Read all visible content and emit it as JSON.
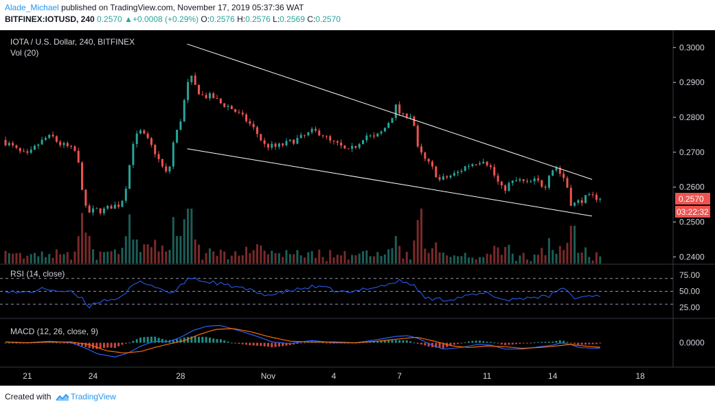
{
  "header": {
    "author": "Alade_Michael",
    "published": "published on TradingView.com, November 17, 2019 05:37:36 WAT",
    "symbol": "BITFINEX:IOTUSD, 240",
    "o_label": "O:",
    "o_value": "0.2576",
    "h_label": "H:",
    "h_value": "0.2576",
    "l_label": "L:",
    "l_value": "0.2569",
    "c_label": "C:",
    "c_value": "0.2570",
    "price": "0.2570",
    "change": "+0.0008 (+0.29%)"
  },
  "main_pane": {
    "title": "IOTA / U.S. Dollar, 240, BITFINEX",
    "volume_label": "Vol (20)",
    "price_tag": "0.2570",
    "countdown": "03:22:32"
  },
  "rsi_pane": {
    "label": "RSI (14, close)"
  },
  "macd_pane": {
    "label": "MACD (12, 26, close, 9)"
  },
  "footer": {
    "created_with": "Created with",
    "brand": "TradingView"
  },
  "colors": {
    "up": "#26a69a",
    "down": "#ef5350",
    "background": "#000000",
    "rsi_line": "#2962ff",
    "macd_line": "#2962ff",
    "signal_line": "#ff6d00",
    "trendline": "#ffffff"
  },
  "chart_data": [
    {
      "type": "candlestick",
      "pair": "IOTA / U.S. Dollar",
      "interval": "240",
      "exchange": "BITFINEX",
      "y_ticks": [
        0.3,
        0.29,
        0.28,
        0.27,
        0.26,
        0.25,
        0.24
      ],
      "y_tick_labels": [
        "0.3000",
        "0.2900",
        "0.2800",
        "0.2700",
        "0.2600",
        "0.2500",
        "0.2400"
      ],
      "ylim": [
        0.2385,
        0.303
      ],
      "x_tick_labels": [
        "21",
        "24",
        "28",
        "Nov",
        "4",
        "7",
        "11",
        "14",
        "18"
      ],
      "x_range_days": "Oct 21 – Nov 17, 2019",
      "last_close": 0.257,
      "trendlines": [
        {
          "name": "upper",
          "from": {
            "day": 28.3,
            "price": 0.301
          },
          "to": {
            "day": 46.8,
            "price": 0.2622
          }
        },
        {
          "name": "lower",
          "from": {
            "day": 28.3,
            "price": 0.271
          },
          "to": {
            "day": 46.8,
            "price": 0.2517
          }
        }
      ],
      "price_path": [
        [
          20.0,
          0.2735
        ],
        [
          20.4,
          0.272
        ],
        [
          20.8,
          0.27
        ],
        [
          21.2,
          0.269
        ],
        [
          21.6,
          0.272
        ],
        [
          22.0,
          0.274
        ],
        [
          22.3,
          0.2745
        ],
        [
          22.6,
          0.2725
        ],
        [
          23.0,
          0.2715
        ],
        [
          23.4,
          0.27
        ],
        [
          23.6,
          0.263
        ],
        [
          23.8,
          0.254
        ],
        [
          24.0,
          0.2528
        ],
        [
          24.3,
          0.2535
        ],
        [
          24.6,
          0.2532
        ],
        [
          25.0,
          0.2545
        ],
        [
          25.4,
          0.255
        ],
        [
          25.6,
          0.258
        ],
        [
          25.8,
          0.265
        ],
        [
          26.0,
          0.273
        ],
        [
          26.3,
          0.276
        ],
        [
          26.6,
          0.274
        ],
        [
          27.0,
          0.27
        ],
        [
          27.3,
          0.266
        ],
        [
          27.6,
          0.263
        ],
        [
          27.8,
          0.272
        ],
        [
          28.0,
          0.276
        ],
        [
          28.2,
          0.28
        ],
        [
          28.4,
          0.287
        ],
        [
          28.6,
          0.292
        ],
        [
          28.9,
          0.288
        ],
        [
          29.2,
          0.286
        ],
        [
          29.6,
          0.286
        ],
        [
          30.0,
          0.284
        ],
        [
          30.4,
          0.283
        ],
        [
          30.8,
          0.281
        ],
        [
          31.2,
          0.279
        ],
        [
          31.6,
          0.276
        ],
        [
          32.0,
          0.272
        ],
        [
          32.5,
          0.2715
        ],
        [
          33.0,
          0.2725
        ],
        [
          33.4,
          0.2735
        ],
        [
          33.8,
          0.2745
        ],
        [
          34.2,
          0.276
        ],
        [
          34.6,
          0.2755
        ],
        [
          35.0,
          0.273
        ],
        [
          35.4,
          0.272
        ],
        [
          35.8,
          0.27
        ],
        [
          36.2,
          0.272
        ],
        [
          36.6,
          0.275
        ],
        [
          37.0,
          0.274
        ],
        [
          37.4,
          0.276
        ],
        [
          37.8,
          0.28
        ],
        [
          38.0,
          0.283
        ],
        [
          38.3,
          0.28
        ],
        [
          38.6,
          0.2815
        ],
        [
          38.8,
          0.279
        ],
        [
          39.0,
          0.271
        ],
        [
          39.3,
          0.268
        ],
        [
          39.6,
          0.266
        ],
        [
          40.0,
          0.262
        ],
        [
          40.4,
          0.263
        ],
        [
          40.8,
          0.264
        ],
        [
          41.2,
          0.266
        ],
        [
          41.6,
          0.267
        ],
        [
          42.0,
          0.268
        ],
        [
          42.3,
          0.266
        ],
        [
          42.6,
          0.262
        ],
        [
          42.9,
          0.259
        ],
        [
          43.2,
          0.261
        ],
        [
          43.6,
          0.262
        ],
        [
          44.0,
          0.261
        ],
        [
          44.4,
          0.262
        ],
        [
          44.8,
          0.26
        ],
        [
          45.0,
          0.264
        ],
        [
          45.3,
          0.266
        ],
        [
          45.6,
          0.263
        ],
        [
          45.8,
          0.262
        ],
        [
          45.9,
          0.256
        ],
        [
          46.1,
          0.255
        ],
        [
          46.4,
          0.256
        ],
        [
          46.7,
          0.257
        ],
        [
          47.0,
          0.2572
        ],
        [
          47.3,
          0.257
        ]
      ]
    },
    {
      "type": "line",
      "name": "RSI (14, close)",
      "y_ticks": [
        75.0,
        50.0,
        25.0
      ],
      "y_tick_labels": [
        "75.00",
        "50.00",
        "25.00"
      ],
      "ylim": [
        10,
        90
      ],
      "levels": [
        70,
        50,
        30
      ],
      "values": [
        [
          20.0,
          52
        ],
        [
          20.6,
          47
        ],
        [
          21.2,
          50
        ],
        [
          21.8,
          54
        ],
        [
          22.4,
          51
        ],
        [
          23.0,
          48
        ],
        [
          23.5,
          38
        ],
        [
          23.8,
          26
        ],
        [
          24.2,
          34
        ],
        [
          24.8,
          38
        ],
        [
          25.4,
          41
        ],
        [
          25.8,
          60
        ],
        [
          26.3,
          65
        ],
        [
          26.8,
          58
        ],
        [
          27.3,
          50
        ],
        [
          27.7,
          48
        ],
        [
          28.0,
          58
        ],
        [
          28.3,
          68
        ],
        [
          28.6,
          72
        ],
        [
          29.0,
          65
        ],
        [
          29.5,
          64
        ],
        [
          30.0,
          60
        ],
        [
          30.5,
          57
        ],
        [
          31.0,
          53
        ],
        [
          31.6,
          47
        ],
        [
          32.2,
          44
        ],
        [
          32.8,
          50
        ],
        [
          33.4,
          53
        ],
        [
          34.0,
          57
        ],
        [
          34.6,
          55
        ],
        [
          35.2,
          50
        ],
        [
          35.8,
          47
        ],
        [
          36.4,
          55
        ],
        [
          37.0,
          57
        ],
        [
          37.6,
          62
        ],
        [
          38.0,
          66
        ],
        [
          38.5,
          62
        ],
        [
          38.8,
          55
        ],
        [
          39.1,
          40
        ],
        [
          39.6,
          38
        ],
        [
          40.2,
          37
        ],
        [
          40.8,
          41
        ],
        [
          41.4,
          44
        ],
        [
          42.0,
          47
        ],
        [
          42.4,
          42
        ],
        [
          42.8,
          36
        ],
        [
          43.2,
          38
        ],
        [
          43.8,
          40
        ],
        [
          44.4,
          42
        ],
        [
          44.8,
          40
        ],
        [
          45.1,
          50
        ],
        [
          45.4,
          55
        ],
        [
          45.8,
          48
        ],
        [
          46.0,
          38
        ],
        [
          46.4,
          42
        ],
        [
          46.9,
          44
        ],
        [
          47.3,
          44
        ]
      ]
    },
    {
      "type": "line",
      "name": "MACD (12, 26, close, 9)",
      "y_ticks": [
        0.0
      ],
      "y_tick_labels": [
        "0.0000"
      ],
      "ylim": [
        -0.003,
        0.003
      ],
      "series": [
        {
          "name": "MACD",
          "values": [
            [
              20.0,
              0.0001
            ],
            [
              21.0,
              0.0
            ],
            [
              22.0,
              0.0002
            ],
            [
              23.0,
              0.0
            ],
            [
              23.6,
              -0.0006
            ],
            [
              24.2,
              -0.0014
            ],
            [
              25.0,
              -0.0018
            ],
            [
              25.6,
              -0.0013
            ],
            [
              26.2,
              -0.0004
            ],
            [
              26.8,
              0.0002
            ],
            [
              27.4,
              0.0001
            ],
            [
              28.0,
              0.0007
            ],
            [
              28.6,
              0.0016
            ],
            [
              29.2,
              0.0021
            ],
            [
              29.8,
              0.0022
            ],
            [
              30.6,
              0.0016
            ],
            [
              31.4,
              0.0009
            ],
            [
              32.2,
              0.0001
            ],
            [
              33.0,
              -0.0001
            ],
            [
              34.0,
              0.0003
            ],
            [
              35.0,
              0.0
            ],
            [
              36.0,
              0.0
            ],
            [
              37.0,
              0.0004
            ],
            [
              37.8,
              0.0008
            ],
            [
              38.4,
              0.0009
            ],
            [
              38.9,
              0.0005
            ],
            [
              39.4,
              -0.0002
            ],
            [
              40.0,
              -0.0008
            ],
            [
              40.8,
              -0.0006
            ],
            [
              41.6,
              -0.0002
            ],
            [
              42.2,
              -0.0003
            ],
            [
              42.8,
              -0.0008
            ],
            [
              43.6,
              -0.0008
            ],
            [
              44.4,
              -0.0005
            ],
            [
              45.0,
              -0.0003
            ],
            [
              45.4,
              0.0
            ],
            [
              45.8,
              -0.0002
            ],
            [
              46.2,
              -0.0006
            ],
            [
              47.0,
              -0.0007
            ],
            [
              47.3,
              -0.0006
            ]
          ]
        },
        {
          "name": "Signal",
          "values": [
            [
              20.0,
              0.0001
            ],
            [
              21.0,
              0.0
            ],
            [
              22.0,
              0.0001
            ],
            [
              23.0,
              0.0001
            ],
            [
              23.8,
              -0.0002
            ],
            [
              24.6,
              -0.001
            ],
            [
              25.4,
              -0.0013
            ],
            [
              26.2,
              -0.0011
            ],
            [
              26.8,
              -0.0006
            ],
            [
              27.4,
              -0.0002
            ],
            [
              28.2,
              0.0003
            ],
            [
              28.8,
              0.001
            ],
            [
              29.6,
              0.0017
            ],
            [
              30.4,
              0.0018
            ],
            [
              31.2,
              0.0014
            ],
            [
              32.0,
              0.0008
            ],
            [
              33.0,
              0.0002
            ],
            [
              34.0,
              0.0001
            ],
            [
              35.0,
              0.0001
            ],
            [
              36.0,
              0.0
            ],
            [
              37.0,
              0.0002
            ],
            [
              38.0,
              0.0005
            ],
            [
              38.8,
              0.0007
            ],
            [
              39.6,
              0.0002
            ],
            [
              40.4,
              -0.0004
            ],
            [
              41.2,
              -0.0006
            ],
            [
              42.0,
              -0.0004
            ],
            [
              42.8,
              -0.0005
            ],
            [
              43.6,
              -0.0007
            ],
            [
              44.4,
              -0.0006
            ],
            [
              45.2,
              -0.0004
            ],
            [
              45.8,
              -0.0002
            ],
            [
              46.4,
              -0.0004
            ],
            [
              47.3,
              -0.0006
            ]
          ]
        }
      ]
    }
  ]
}
